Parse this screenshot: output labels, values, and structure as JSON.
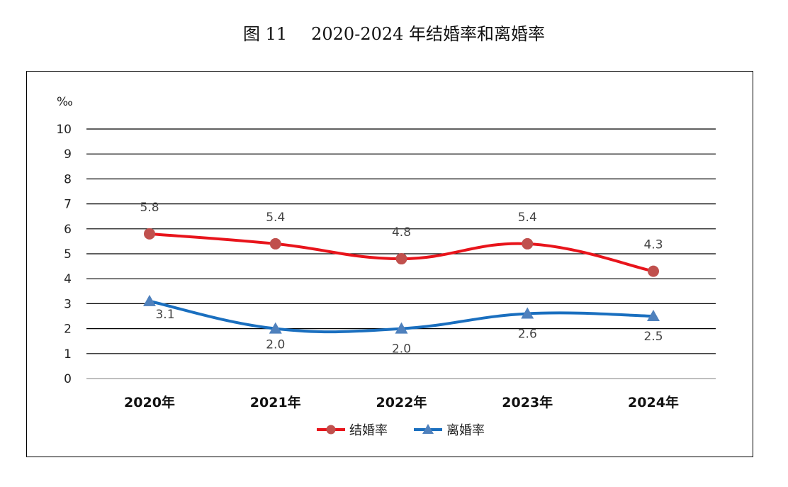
{
  "figure_label": "图 11",
  "chart_data": {
    "type": "line",
    "title": "2020-2024 年结婚率和离婚率",
    "unit": "‰",
    "categories": [
      "2020年",
      "2021年",
      "2022年",
      "2023年",
      "2024年"
    ],
    "ylim": [
      0,
      10
    ],
    "yticks": [
      0,
      1,
      2,
      3,
      4,
      5,
      6,
      7,
      8,
      9,
      10
    ],
    "grid": true,
    "legend_position": "bottom",
    "series": [
      {
        "name": "结婚率",
        "values": [
          5.8,
          5.4,
          4.8,
          5.4,
          4.3
        ],
        "color": "#e8141b",
        "marker_color": "#c0504d",
        "marker": "circle"
      },
      {
        "name": "离婚率",
        "values": [
          3.1,
          2.0,
          2.0,
          2.6,
          2.5
        ],
        "color": "#1a6fbf",
        "marker_color": "#4f81bd",
        "marker": "triangle"
      }
    ]
  }
}
